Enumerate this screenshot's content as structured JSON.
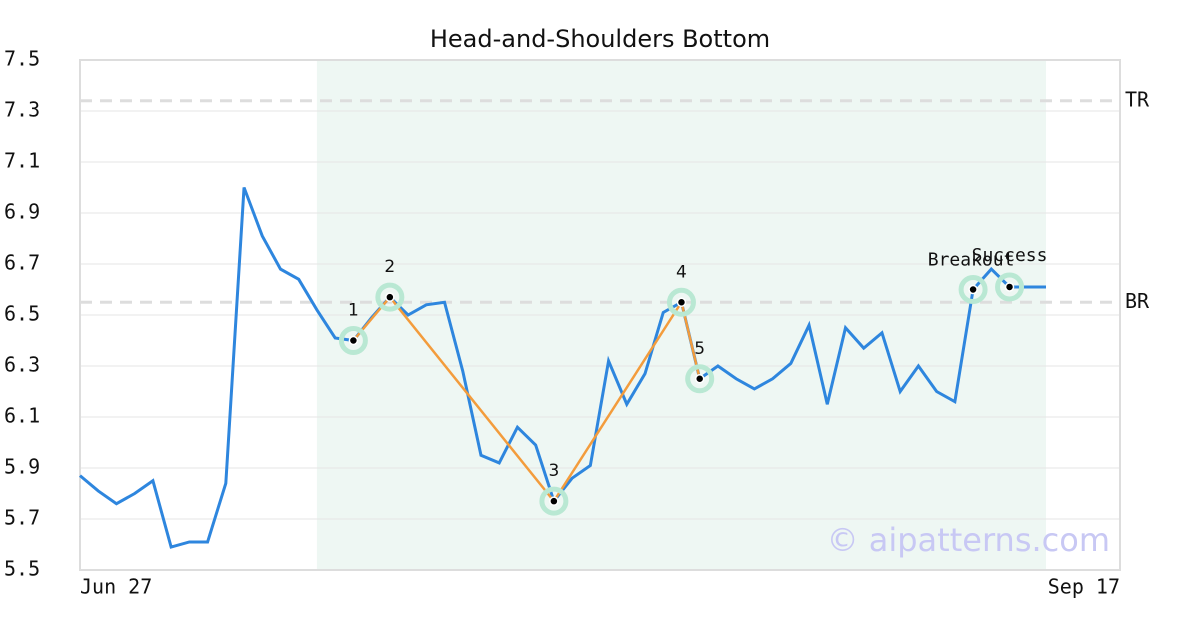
{
  "chart_data": {
    "type": "line",
    "title": "Head-and-Shoulders Bottom",
    "x_labels": [
      "Jun 27",
      "Sep 17"
    ],
    "series": [
      {
        "color": "#2e86de",
        "values": [
          5.87,
          5.81,
          5.76,
          5.8,
          5.85,
          5.59,
          5.61,
          5.61,
          5.84,
          7.0,
          6.81,
          6.68,
          6.64,
          6.52,
          6.41,
          6.4,
          6.49,
          6.57,
          6.5,
          6.54,
          6.55,
          6.28,
          5.95,
          5.92,
          6.06,
          5.99,
          5.77,
          5.86,
          5.91,
          6.32,
          6.15,
          6.27,
          6.51,
          6.55,
          6.25,
          6.3,
          6.25,
          6.21,
          6.25,
          6.31,
          6.46,
          6.15,
          6.45,
          6.37,
          6.43,
          6.2,
          6.3,
          6.2,
          6.16,
          6.6,
          6.68,
          6.61,
          6.61,
          6.61
        ]
      }
    ],
    "pattern": {
      "color": "#f39c3c",
      "points": [
        {
          "label": "1",
          "index": 15
        },
        {
          "label": "2",
          "index": 17
        },
        {
          "label": "3",
          "index": 26
        },
        {
          "label": "4",
          "index": 33
        },
        {
          "label": "5",
          "index": 34
        }
      ]
    },
    "annotations": [
      {
        "label": "Breakout",
        "index": 49
      },
      {
        "label": "Success",
        "index": 51
      }
    ],
    "levels": [
      {
        "label": "TR",
        "value": 7.34
      },
      {
        "label": "BR",
        "value": 6.55
      }
    ],
    "shade_range": [
      13,
      53
    ],
    "watermark": "© aipatterns.com",
    "ylim": [
      5.5,
      7.5
    ],
    "yticks": [
      5.5,
      5.7,
      5.9,
      6.1,
      6.3,
      6.5,
      6.7,
      6.9,
      7.1,
      7.3,
      7.5
    ],
    "grid": true
  }
}
